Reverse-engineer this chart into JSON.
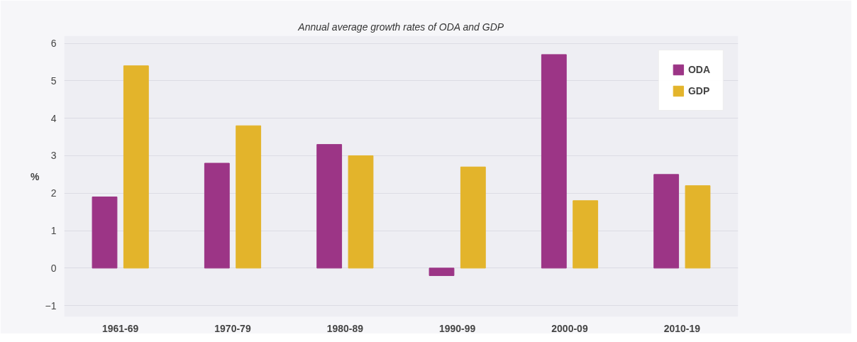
{
  "chart_data": {
    "type": "bar",
    "title": "Annual average growth rates of ODA and GDP",
    "ylabel": "%",
    "categories": [
      "1961-69",
      "1970-79",
      "1980-89",
      "1990-99",
      "2000-09",
      "2010-19"
    ],
    "series": [
      {
        "name": "ODA",
        "color": "#9c3586",
        "values": [
          1.9,
          2.8,
          3.3,
          -0.2,
          5.7,
          2.5
        ]
      },
      {
        "name": "GDP",
        "color": "#e3b42b",
        "values": [
          5.4,
          3.8,
          3.0,
          2.7,
          1.8,
          2.2
        ]
      }
    ],
    "ylim": [
      -1.3,
      6.2
    ],
    "yticks": [
      -1,
      0,
      1,
      2,
      3,
      4,
      5,
      6
    ],
    "grid": "y",
    "legend": "top right"
  }
}
